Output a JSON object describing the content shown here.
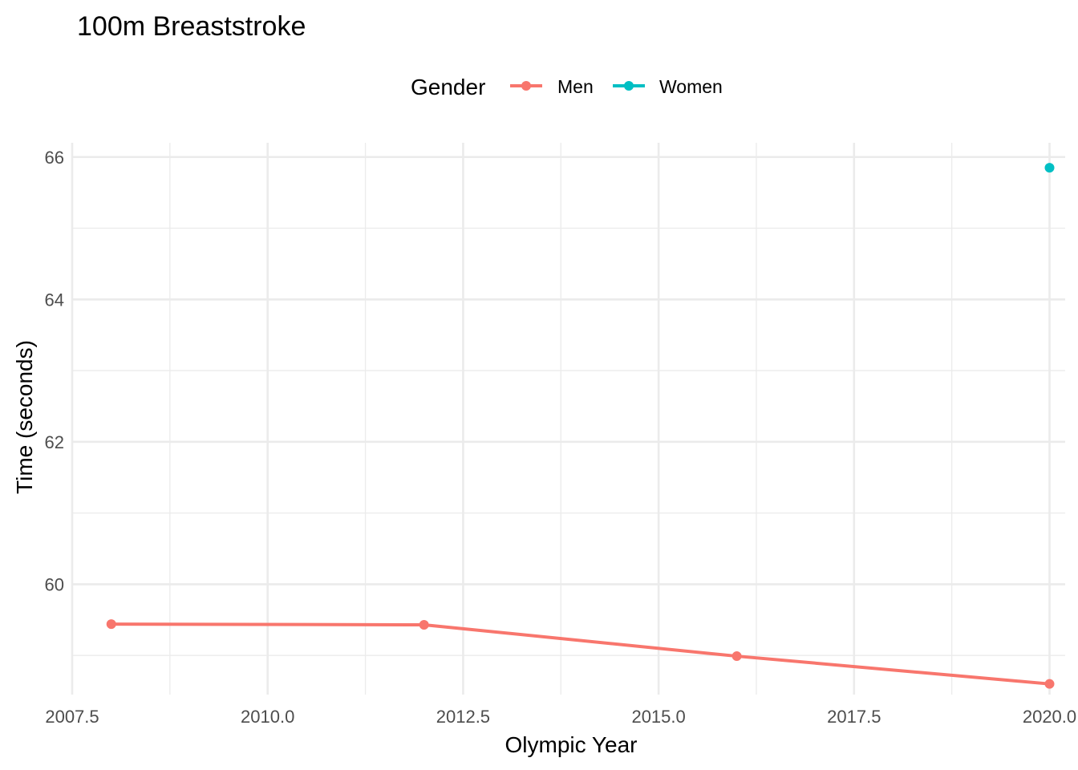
{
  "chart_data": {
    "type": "line",
    "title": "100m Breaststroke",
    "xlabel": "Olympic Year",
    "ylabel": "Time (seconds)",
    "xlim": [
      2007.5,
      2020.2
    ],
    "ylim": [
      58.45,
      66.2
    ],
    "x_ticks": [
      2007.5,
      2010.0,
      2012.5,
      2015.0,
      2017.5,
      2020.0
    ],
    "x_tick_labels": [
      "2007.5",
      "2010.0",
      "2012.5",
      "2015.0",
      "2017.5",
      "2020.0"
    ],
    "y_ticks": [
      60,
      62,
      64,
      66
    ],
    "y_tick_labels": [
      "60",
      "62",
      "64",
      "66"
    ],
    "grid": true,
    "legend": {
      "title": "Gender",
      "position": "top",
      "entries": [
        "Men",
        "Women"
      ]
    },
    "series": [
      {
        "name": "Men",
        "color": "#F8766D",
        "points": [
          {
            "x": 2008,
            "y": 59.44
          },
          {
            "x": 2012,
            "y": 59.43
          },
          {
            "x": 2016,
            "y": 58.99
          },
          {
            "x": 2020,
            "y": 58.6
          }
        ]
      },
      {
        "name": "Women",
        "color": "#00BFC4",
        "points": [
          {
            "x": 2020,
            "y": 65.85
          }
        ]
      }
    ]
  }
}
